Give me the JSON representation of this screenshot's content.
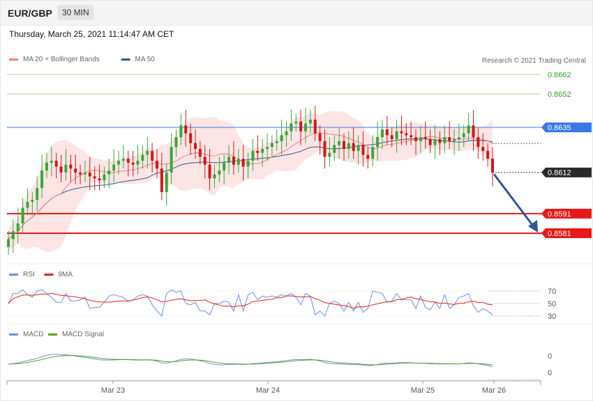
{
  "header": {
    "pair": "EUR/GBP",
    "timeframe": "30 MIN"
  },
  "datetime": "Thursday, March 25, 2021 11:14:47 AM CET",
  "copyright": "Research © 2021 Trading Central",
  "colors": {
    "ma20": "#f08080",
    "ma50": "#2c5a94",
    "bands": "#fde0e0",
    "up": "#38a838",
    "down": "#d01818",
    "green_level": "#a8d898",
    "blue_level": "#3a78e8",
    "red_level": "#e81818",
    "current": "#2a2a2a",
    "arrow": "#2c5a94",
    "rsi": "#6a90e0",
    "ma9": "#e02020",
    "macd": "#6a90e0",
    "macd_signal": "#5aa020"
  },
  "legend_main": [
    {
      "label": "MA 20 + Bollinger Bands",
      "color": "#f08080"
    },
    {
      "label": "MA 50",
      "color": "#2c5a94"
    }
  ],
  "legend_rsi": [
    {
      "label": "RSI",
      "color": "#6a90e0"
    },
    {
      "label": "9MA",
      "color": "#e02020"
    }
  ],
  "legend_macd": [
    {
      "label": "MACD",
      "color": "#6a90e0"
    },
    {
      "label": "MACD Signal",
      "color": "#5aa020"
    }
  ],
  "chart_data": {
    "type": "candlestick",
    "ylim": [
      0.8575,
      0.8668
    ],
    "x_labels": [
      "Mar 23",
      "Mar 24",
      "Mar 25",
      "Mar 26"
    ],
    "levels": [
      {
        "value": "0.8662",
        "kind": "target"
      },
      {
        "value": "0.8652",
        "kind": "target"
      },
      {
        "value": "0.8635",
        "kind": "pivot"
      },
      {
        "value": "0.8612",
        "kind": "current"
      },
      {
        "value": "0.8591",
        "kind": "support"
      },
      {
        "value": "0.8581",
        "kind": "support"
      }
    ],
    "close_series": [
      0.8578,
      0.8582,
      0.8586,
      0.8594,
      0.8597,
      0.8598,
      0.8604,
      0.8613,
      0.8617,
      0.8618,
      0.8615,
      0.8612,
      0.8616,
      0.8614,
      0.8612,
      0.8611,
      0.8612,
      0.861,
      0.8609,
      0.8608,
      0.8611,
      0.8613,
      0.8616,
      0.8618,
      0.8619,
      0.8617,
      0.8616,
      0.8618,
      0.8621,
      0.8623,
      0.8618,
      0.8614,
      0.8602,
      0.8612,
      0.8625,
      0.863,
      0.8636,
      0.8632,
      0.8627,
      0.8624,
      0.862,
      0.8616,
      0.8609,
      0.8611,
      0.8613,
      0.8617,
      0.862,
      0.8616,
      0.8619,
      0.8615,
      0.8618,
      0.8623,
      0.8622,
      0.8624,
      0.8625,
      0.8627,
      0.8628,
      0.8631,
      0.8633,
      0.8637,
      0.8638,
      0.8633,
      0.8637,
      0.8639,
      0.8632,
      0.8628,
      0.862,
      0.8622,
      0.8626,
      0.8628,
      0.8624,
      0.8627,
      0.8623,
      0.8626,
      0.8621,
      0.8619,
      0.8625,
      0.863,
      0.8634,
      0.8631,
      0.8629,
      0.8633,
      0.8632,
      0.8631,
      0.863,
      0.8628,
      0.863,
      0.8629,
      0.8626,
      0.8629,
      0.8627,
      0.863,
      0.8628,
      0.8629,
      0.863,
      0.8632,
      0.8636,
      0.863,
      0.8625,
      0.8623,
      0.8619,
      0.8612
    ],
    "rsi": {
      "levels": [
        70,
        50,
        30
      ]
    },
    "macd": {
      "levels": [
        0,
        0
      ]
    }
  }
}
